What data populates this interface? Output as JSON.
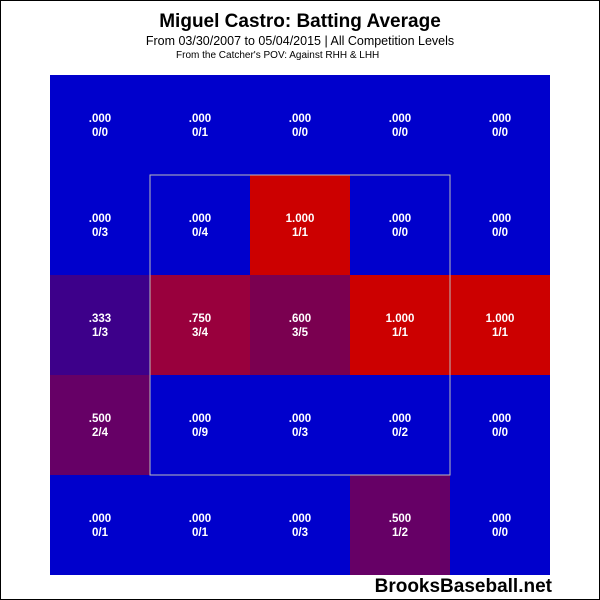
{
  "title": "Miguel Castro: Batting Average",
  "subtitle": "From 03/30/2007 to 05/04/2015 | All Competition Levels",
  "note": "From the Catcher's POV:   Against RHH & LHH",
  "watermark": "BrooksBaseball.net",
  "colors": {
    "cold": "#0000cc",
    "hot": "#cc0000",
    "mid_333": "#3d008a",
    "mid_500": "#660066",
    "mid_600": "#7a0050",
    "mid_750": "#99003d",
    "zone_outline": "#bbbbbb"
  },
  "chart_data": {
    "type": "heatmap",
    "title": "Miguel Castro: Batting Average",
    "subtitle": "From 03/30/2007 to 05/04/2015 | All Competition Levels",
    "rows": 5,
    "cols": 5,
    "cells": [
      [
        {
          "avg": ".000",
          "ab": "0/0",
          "color": "cold"
        },
        {
          "avg": ".000",
          "ab": "0/1",
          "color": "cold"
        },
        {
          "avg": ".000",
          "ab": "0/0",
          "color": "cold"
        },
        {
          "avg": ".000",
          "ab": "0/0",
          "color": "cold"
        },
        {
          "avg": ".000",
          "ab": "0/0",
          "color": "cold"
        }
      ],
      [
        {
          "avg": ".000",
          "ab": "0/3",
          "color": "cold"
        },
        {
          "avg": ".000",
          "ab": "0/4",
          "color": "cold"
        },
        {
          "avg": "1.000",
          "ab": "1/1",
          "color": "hot"
        },
        {
          "avg": ".000",
          "ab": "0/0",
          "color": "cold"
        },
        {
          "avg": ".000",
          "ab": "0/0",
          "color": "cold"
        }
      ],
      [
        {
          "avg": ".333",
          "ab": "1/3",
          "color": "mid_333"
        },
        {
          "avg": ".750",
          "ab": "3/4",
          "color": "mid_750"
        },
        {
          "avg": ".600",
          "ab": "3/5",
          "color": "mid_600"
        },
        {
          "avg": "1.000",
          "ab": "1/1",
          "color": "hot"
        },
        {
          "avg": "1.000",
          "ab": "1/1",
          "color": "hot"
        }
      ],
      [
        {
          "avg": ".500",
          "ab": "2/4",
          "color": "mid_500"
        },
        {
          "avg": ".000",
          "ab": "0/9",
          "color": "cold"
        },
        {
          "avg": ".000",
          "ab": "0/3",
          "color": "cold"
        },
        {
          "avg": ".000",
          "ab": "0/2",
          "color": "cold"
        },
        {
          "avg": ".000",
          "ab": "0/0",
          "color": "cold"
        }
      ],
      [
        {
          "avg": ".000",
          "ab": "0/1",
          "color": "cold"
        },
        {
          "avg": ".000",
          "ab": "0/1",
          "color": "cold"
        },
        {
          "avg": ".000",
          "ab": "0/3",
          "color": "cold"
        },
        {
          "avg": ".500",
          "ab": "1/2",
          "color": "mid_500"
        },
        {
          "avg": ".000",
          "ab": "0/0",
          "color": "cold"
        }
      ]
    ],
    "strike_zone": {
      "rows": [
        1,
        3
      ],
      "cols": [
        1,
        3
      ]
    }
  }
}
